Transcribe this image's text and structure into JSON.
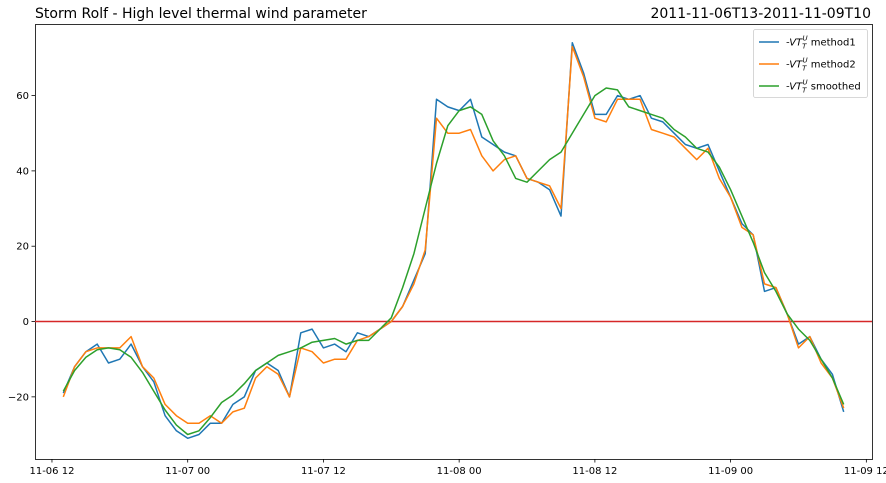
{
  "chart_data": {
    "type": "line",
    "title": "Storm Rolf - High level thermal wind parameter",
    "title_right": "2011-11-06T13-2011-11-09T10",
    "xlabel": "",
    "ylabel": "",
    "x_tick_labels": [
      "11-06 12",
      "11-07 00",
      "11-07 12",
      "11-08 00",
      "11-08 12",
      "11-09 00",
      "11-09 12"
    ],
    "y_tick_labels": [
      "−20",
      "0",
      "20",
      "40",
      "60"
    ],
    "y_ticks": [
      -20,
      0,
      20,
      40,
      60
    ],
    "xlim_hours": [
      -1.5,
      72.5
    ],
    "ylim": [
      -36.5,
      79
    ],
    "grid": false,
    "legend_position": "top-right",
    "reference_line": {
      "y": 0,
      "color": "#d62728"
    },
    "x_hours": [
      1,
      2,
      3,
      4,
      5,
      6,
      7,
      8,
      9,
      10,
      11,
      12,
      13,
      14,
      15,
      16,
      17,
      18,
      19,
      20,
      21,
      22,
      23,
      24,
      25,
      26,
      27,
      28,
      29,
      30,
      31,
      32,
      33,
      34,
      35,
      36,
      37,
      38,
      39,
      40,
      41,
      42,
      43,
      44,
      45,
      46,
      47,
      48,
      49,
      50,
      51,
      52,
      53,
      54,
      55,
      56,
      57,
      58,
      59,
      60,
      61,
      62,
      63,
      64,
      65,
      66,
      67,
      68,
      69,
      70
    ],
    "series": [
      {
        "name": "method1",
        "legend_prefix": "-VT",
        "legend_sub": "T",
        "legend_sup": "U",
        "legend_suffix": " method1",
        "color": "#1f77b4",
        "values": [
          -19,
          -12,
          -8,
          -6,
          -11,
          -10,
          -6,
          -12,
          -16,
          -25,
          -29,
          -31,
          -30,
          -27,
          -27,
          -22,
          -20,
          -13,
          -11,
          -13,
          -20,
          -3,
          -2,
          -7,
          -6,
          -8,
          -3,
          -4,
          -2,
          0,
          4,
          11,
          18,
          59,
          57,
          56,
          59,
          49,
          47,
          45,
          44,
          38,
          37,
          35,
          28,
          74,
          66,
          55,
          55,
          60,
          59,
          60,
          54,
          53,
          50,
          47,
          46,
          47,
          40,
          33,
          26,
          23,
          8,
          9,
          2,
          -6,
          -4,
          -10,
          -14,
          -24
        ]
      },
      {
        "name": "method2",
        "legend_prefix": "-VT",
        "legend_sub": "T",
        "legend_sup": "U",
        "legend_suffix": " method2",
        "color": "#ff7f0e",
        "values": [
          -20,
          -12,
          -8,
          -7,
          -7,
          -7,
          -4,
          -12,
          -15,
          -22,
          -25,
          -27,
          -27,
          -25,
          -27,
          -24,
          -23,
          -15,
          -12,
          -14,
          -20,
          -7,
          -8,
          -11,
          -10,
          -10,
          -5,
          -4,
          -2,
          0,
          4,
          10,
          19,
          54,
          50,
          50,
          51,
          44,
          40,
          43,
          44,
          38,
          37,
          36,
          30,
          73,
          65,
          54,
          53,
          59,
          59,
          59,
          51,
          50,
          49,
          46,
          43,
          46,
          38,
          33,
          25,
          23,
          10,
          9,
          2,
          -7,
          -4,
          -11,
          -15,
          -23
        ]
      },
      {
        "name": "smoothed",
        "legend_prefix": "-VT",
        "legend_sub": "T",
        "legend_sup": "U",
        "legend_suffix": " smoothed",
        "color": "#2ca02c",
        "values": [
          -18.5,
          -13,
          -9.5,
          -7.5,
          -7,
          -7.5,
          -9.5,
          -13.5,
          -18.5,
          -23.5,
          -27.5,
          -30,
          -29,
          -25.5,
          -21.5,
          -19.5,
          -16.5,
          -13,
          -11,
          -9,
          -8,
          -7,
          -5.5,
          -5,
          -4.5,
          -6,
          -5,
          -5,
          -2,
          1,
          9,
          18,
          30,
          42,
          52,
          56,
          57,
          55,
          48,
          44,
          38,
          37,
          40,
          43,
          45,
          50,
          55,
          60,
          62,
          61.5,
          57,
          56,
          55,
          54,
          51,
          49,
          46,
          45,
          41,
          35,
          28,
          21,
          13,
          8,
          2,
          -2,
          -5,
          -10,
          -15,
          -22
        ]
      }
    ]
  }
}
